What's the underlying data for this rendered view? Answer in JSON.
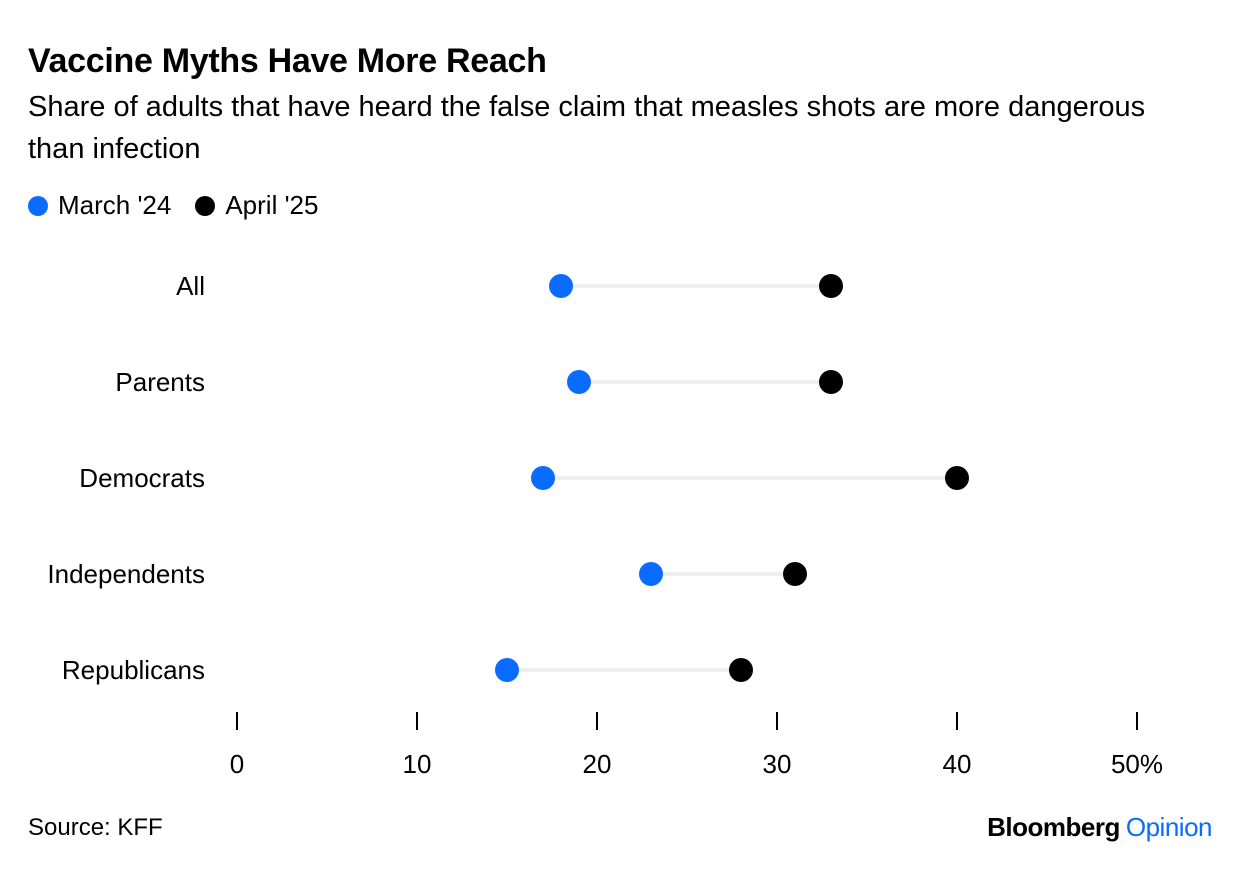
{
  "header": {
    "title": "Vaccine Myths Have More Reach",
    "subtitle": "Share of adults that have heard the false claim that measles shots are more dangerous than infection"
  },
  "legend": [
    {
      "label": "March '24",
      "color": "#0a6cff"
    },
    {
      "label": "April '25",
      "color": "#000000"
    }
  ],
  "chart_data": {
    "type": "dot-range",
    "categories": [
      "All",
      "Parents",
      "Democrats",
      "Independents",
      "Republicans"
    ],
    "series": [
      {
        "name": "March '24",
        "color": "#0a6cff",
        "values": [
          18,
          19,
          17,
          23,
          15
        ]
      },
      {
        "name": "April '25",
        "color": "#000000",
        "values": [
          33,
          33,
          40,
          31,
          28
        ]
      }
    ],
    "xlim": [
      0,
      50
    ],
    "xticks": [
      0,
      10,
      20,
      30,
      40,
      50
    ],
    "xtick_labels": [
      "0",
      "10",
      "20",
      "30",
      "40",
      "50%"
    ],
    "connector_color": "#eeeeee",
    "grid": false
  },
  "footer": {
    "source": "Source: KFF",
    "brand_primary": "Bloomberg",
    "brand_secondary": "Opinion",
    "brand_secondary_color": "#0a6cff"
  }
}
